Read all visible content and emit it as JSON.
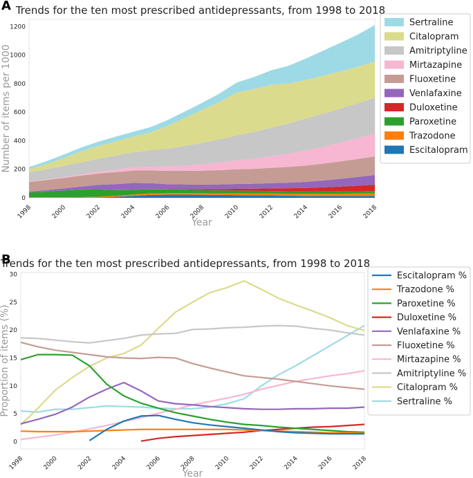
{
  "chart_data": [
    {
      "panel": "A",
      "type": "area",
      "stacked": true,
      "title": "Trends for the ten most prescribed antidepressants, from 1998 to 2018",
      "xlabel": "Year",
      "ylabel": "Number of items per 1000",
      "xlim": [
        1998,
        2018
      ],
      "ylim": [
        0,
        1250
      ],
      "xticks": [
        "1998",
        "2000",
        "2002",
        "2004",
        "2006",
        "2008",
        "2010",
        "2012",
        "2014",
        "2016",
        "2018"
      ],
      "yticks": [
        "0",
        "200",
        "400",
        "600",
        "800",
        "1000",
        "1200"
      ],
      "ytick_values": [
        0,
        200,
        400,
        600,
        800,
        1000,
        1200
      ],
      "legend_position": "right-outside",
      "x": [
        1998,
        1999,
        2000,
        2001,
        2002,
        2003,
        2004,
        2005,
        2006,
        2007,
        2008,
        2009,
        2010,
        2011,
        2012,
        2013,
        2014,
        2015,
        2016,
        2017,
        2018
      ],
      "series": [
        {
          "name": "Escitalopram",
          "color": "#1f77b4",
          "values": [
            0,
            0,
            0,
            0,
            1,
            7,
            14,
            20,
            22,
            22,
            21,
            20,
            19,
            18,
            17,
            15,
            13,
            12,
            12,
            12,
            12
          ]
        },
        {
          "name": "Trazodone",
          "color": "#ff7f0e",
          "values": [
            4,
            4,
            4,
            5,
            6,
            7,
            9,
            10,
            11,
            11,
            11,
            11,
            12,
            12,
            13,
            14,
            15,
            16,
            17,
            18,
            19
          ]
        },
        {
          "name": "Paroxetine",
          "color": "#2ca02c",
          "values": [
            33,
            40,
            48,
            52,
            52,
            40,
            33,
            30,
            26,
            24,
            22,
            21,
            20,
            19,
            18,
            17,
            16,
            16,
            16,
            16,
            16
          ]
        },
        {
          "name": "Duloxetine",
          "color": "#d62728",
          "values": [
            0,
            0,
            0,
            0,
            0,
            0,
            0,
            1,
            3,
            5,
            7,
            9,
            12,
            15,
            18,
            21,
            25,
            29,
            34,
            39,
            45
          ]
        },
        {
          "name": "Venlafaxine",
          "color": "#9467bd",
          "values": [
            7,
            10,
            14,
            22,
            32,
            42,
            48,
            42,
            34,
            32,
            32,
            33,
            34,
            35,
            37,
            39,
            43,
            48,
            54,
            61,
            68
          ]
        },
        {
          "name": "Fluoxetine",
          "color": "#c49c94",
          "values": [
            67,
            70,
            73,
            76,
            79,
            84,
            87,
            89,
            93,
            95,
            97,
            100,
            103,
            104,
            107,
            110,
            114,
            118,
            122,
            126,
            130
          ]
        },
        {
          "name": "Mirtazapine",
          "color": "#f7b6d2",
          "values": [
            2,
            4,
            6,
            10,
            13,
            17,
            22,
            26,
            30,
            37,
            45,
            53,
            62,
            71,
            81,
            92,
            105,
            118,
            130,
            145,
            160
          ]
        },
        {
          "name": "Amitriptyline",
          "color": "#c7c7c7",
          "values": [
            65,
            72,
            78,
            84,
            90,
            98,
            105,
            115,
            125,
            138,
            150,
            162,
            175,
            187,
            200,
            212,
            224,
            233,
            240,
            245,
            250
          ]
        },
        {
          "name": "Citalopram",
          "color": "#dbdb8d",
          "values": [
            23,
            36,
            55,
            75,
            90,
            100,
            110,
            125,
            160,
            195,
            230,
            260,
            300,
            300,
            300,
            280,
            270,
            265,
            260,
            255,
            255
          ]
        },
        {
          "name": "Sertraline",
          "color": "#9edae5",
          "values": [
            15,
            20,
            25,
            28,
            30,
            33,
            34,
            36,
            40,
            45,
            50,
            60,
            70,
            85,
            102,
            125,
            150,
            175,
            200,
            225,
            255
          ]
        }
      ]
    },
    {
      "panel": "B",
      "type": "line",
      "title": "Trends for the ten most prescribed antidepressants, from 1998 to 2018",
      "xlabel": "Year",
      "ylabel": "Proportion of items (%)",
      "xlim": [
        1998,
        2018
      ],
      "ylim": [
        -1.3,
        30.3
      ],
      "xticks": [
        "1998",
        "2000",
        "2002",
        "2004",
        "2006",
        "2008",
        "2010",
        "2012",
        "2014",
        "2016",
        "2018"
      ],
      "yticks": [
        "0",
        "5",
        "10",
        "15",
        "20",
        "25",
        "30"
      ],
      "ytick_values": [
        0,
        5,
        10,
        15,
        20,
        25,
        30
      ],
      "legend_position": "right-outside",
      "series": [
        {
          "name": "Sertraline %",
          "color": "#9edae5",
          "x": [
            1998,
            1999,
            2000,
            2001,
            2002,
            2003,
            2004,
            2005,
            2006,
            2007,
            2008,
            2009,
            2010,
            2011,
            2012,
            2013,
            2014,
            2015,
            2016,
            2017,
            2018
          ],
          "values": [
            5.5,
            5.3,
            5.8,
            5.8,
            6.1,
            6.4,
            6.3,
            6.2,
            6.0,
            5.9,
            5.9,
            6.2,
            6.8,
            7.7,
            10.0,
            12.0,
            13.6,
            15.4,
            17.2,
            19.0,
            20.8
          ]
        },
        {
          "name": "Citalopram %",
          "color": "#dbdb8d",
          "x": [
            1998,
            1999,
            2000,
            2001,
            2002,
            2003,
            2004,
            2005,
            2006,
            2007,
            2008,
            2009,
            2010,
            2011,
            2012,
            2013,
            2014,
            2015,
            2016,
            2017,
            2018
          ],
          "values": [
            3.0,
            6.0,
            9.2,
            11.5,
            13.5,
            15.0,
            15.8,
            17.3,
            20.3,
            23.2,
            25.0,
            26.7,
            27.6,
            28.8,
            27.3,
            25.7,
            24.5,
            23.4,
            22.2,
            20.8,
            19.9
          ]
        },
        {
          "name": "Amitriptyline %",
          "color": "#c7c7c7",
          "x": [
            1998,
            1999,
            2000,
            2001,
            2002,
            2003,
            2004,
            2005,
            2006,
            2007,
            2008,
            2009,
            2010,
            2011,
            2012,
            2013,
            2014,
            2015,
            2016,
            2017,
            2018
          ],
          "values": [
            18.6,
            18.5,
            18.2,
            17.9,
            17.7,
            18.1,
            18.5,
            19.1,
            19.3,
            19.4,
            20.1,
            20.2,
            20.4,
            20.5,
            20.7,
            20.8,
            20.7,
            20.3,
            20.0,
            19.5,
            19.1
          ]
        },
        {
          "name": "Mirtazapine %",
          "color": "#f7b6d2",
          "x": [
            1998,
            1999,
            2000,
            2001,
            2002,
            2003,
            2004,
            2005,
            2006,
            2007,
            2008,
            2009,
            2010,
            2011,
            2012,
            2013,
            2014,
            2015,
            2016,
            2017,
            2018
          ],
          "values": [
            0.4,
            0.8,
            1.2,
            1.7,
            2.3,
            2.9,
            3.6,
            4.3,
            5.1,
            5.8,
            6.6,
            7.2,
            7.8,
            8.5,
            9.4,
            10.1,
            10.8,
            11.3,
            11.8,
            12.2,
            12.7
          ]
        },
        {
          "name": "Fluoxetine %",
          "color": "#c49c94",
          "x": [
            1998,
            1999,
            2000,
            2001,
            2002,
            2003,
            2004,
            2005,
            2006,
            2007,
            2008,
            2009,
            2010,
            2011,
            2012,
            2013,
            2014,
            2015,
            2016,
            2017,
            2018
          ],
          "values": [
            17.8,
            17.0,
            16.4,
            16.0,
            15.6,
            15.2,
            15.0,
            14.9,
            15.1,
            15.0,
            14.0,
            13.2,
            12.5,
            11.8,
            11.5,
            11.2,
            10.8,
            10.4,
            10.0,
            9.7,
            9.4
          ]
        },
        {
          "name": "Venlafaxine %",
          "color": "#9467bd",
          "x": [
            1998,
            1999,
            2000,
            2001,
            2002,
            2003,
            2004,
            2005,
            2006,
            2007,
            2008,
            2009,
            2010,
            2011,
            2012,
            2013,
            2014,
            2015,
            2016,
            2017,
            2018
          ],
          "values": [
            3.2,
            4.0,
            4.9,
            6.2,
            8.0,
            9.4,
            10.6,
            9.1,
            7.3,
            6.8,
            6.6,
            6.3,
            6.1,
            5.9,
            5.8,
            5.8,
            5.9,
            5.9,
            6.0,
            6.0,
            6.2
          ]
        },
        {
          "name": "Duloxetine %",
          "color": "#d62728",
          "x": [
            2005,
            2006,
            2007,
            2008,
            2009,
            2010,
            2011,
            2012,
            2013,
            2014,
            2015,
            2016,
            2017,
            2018
          ],
          "values": [
            0.1,
            0.6,
            0.9,
            1.1,
            1.3,
            1.5,
            1.7,
            2.0,
            2.2,
            2.4,
            2.6,
            2.7,
            2.9,
            3.1
          ]
        },
        {
          "name": "Paroxetine %",
          "color": "#2ca02c",
          "x": [
            1998,
            1999,
            2000,
            2001,
            2002,
            2003,
            2004,
            2005,
            2006,
            2007,
            2008,
            2009,
            2010,
            2011,
            2012,
            2013,
            2014,
            2015,
            2016,
            2017,
            2018
          ],
          "values": [
            14.7,
            15.6,
            15.6,
            15.5,
            13.6,
            10.3,
            8.2,
            6.9,
            6.0,
            5.2,
            4.6,
            4.0,
            3.5,
            3.1,
            2.9,
            2.6,
            2.4,
            2.2,
            2.0,
            1.8,
            1.7
          ]
        },
        {
          "name": "Trazodone %",
          "color": "#ff7f0e",
          "x": [
            1998,
            1999,
            2000,
            2001,
            2002,
            2003,
            2004,
            2005,
            2006,
            2007,
            2008,
            2009,
            2010,
            2011,
            2012,
            2013,
            2014,
            2015,
            2016,
            2017,
            2018
          ],
          "values": [
            1.9,
            1.8,
            1.8,
            1.8,
            1.9,
            2.0,
            2.1,
            2.2,
            2.2,
            2.2,
            2.2,
            2.2,
            2.2,
            2.1,
            2.0,
            1.9,
            1.8,
            1.7,
            1.6,
            1.6,
            1.5
          ]
        },
        {
          "name": "Escitalopram %",
          "color": "#1f77b4",
          "x": [
            2002,
            2003,
            2004,
            2005,
            2006,
            2007,
            2008,
            2009,
            2010,
            2011,
            2012,
            2013,
            2014,
            2015,
            2016,
            2017,
            2018
          ],
          "values": [
            0.2,
            2.2,
            3.7,
            4.6,
            4.7,
            4.0,
            3.4,
            3.0,
            2.7,
            2.4,
            2.1,
            1.8,
            1.6,
            1.5,
            1.4,
            1.4,
            1.4
          ]
        }
      ]
    }
  ]
}
